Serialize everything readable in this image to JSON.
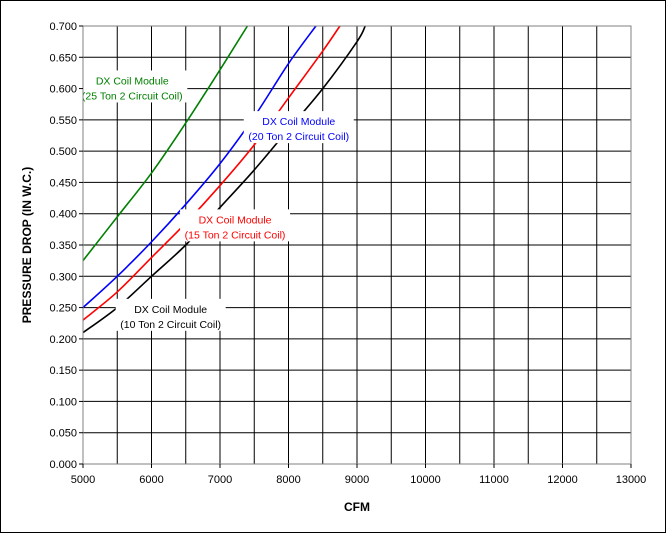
{
  "chart_data": {
    "type": "line",
    "title": "",
    "xlabel": "CFM",
    "ylabel": "PRESSURE DROP (IN W.C.)",
    "xlim": [
      5000,
      13000
    ],
    "ylim": [
      0,
      0.7
    ],
    "xticks": [
      "5000",
      "6000",
      "7000",
      "8000",
      "9000",
      "10000",
      "11000",
      "12000",
      "13000"
    ],
    "yticks": [
      "0.000",
      "0.050",
      "0.100",
      "0.150",
      "0.200",
      "0.250",
      "0.300",
      "0.350",
      "0.400",
      "0.450",
      "0.500",
      "0.550",
      "0.600",
      "0.650",
      "0.700"
    ],
    "grid": true,
    "series": [
      {
        "name": "25 Ton",
        "label1": "DX Coil Module",
        "label2": "(25 Ton 2 Circuit Coil)",
        "color": "#008000",
        "x": [
          5000,
          5500,
          6000,
          6500,
          7000,
          7400
        ],
        "y": [
          0.325,
          0.395,
          0.465,
          0.545,
          0.63,
          0.7
        ],
        "label_at": [
          5720,
          0.605
        ]
      },
      {
        "name": "20 Ton",
        "label1": "DX Coil Module",
        "label2": "(20 Ton 2 Circuit Coil)",
        "color": "#0000ff",
        "x": [
          5000,
          5500,
          6000,
          6500,
          7000,
          7500,
          8000,
          8400
        ],
        "y": [
          0.25,
          0.3,
          0.355,
          0.415,
          0.48,
          0.555,
          0.64,
          0.7
        ],
        "label_at": [
          8150,
          0.54
        ]
      },
      {
        "name": "15 Ton",
        "label1": "DX Coil Module",
        "label2": "(15 Ton 2 Circuit Coil)",
        "color": "#ff0000",
        "x": [
          5000,
          5500,
          6000,
          6500,
          7000,
          7500,
          8000,
          8500,
          8750
        ],
        "y": [
          0.23,
          0.275,
          0.33,
          0.385,
          0.445,
          0.51,
          0.585,
          0.66,
          0.7
        ],
        "label_at": [
          7220,
          0.383
        ]
      },
      {
        "name": "10 Ton",
        "label1": "DX Coil Module",
        "label2": "(10 Ton 2 Circuit Coil)",
        "color": "#000000",
        "x": [
          5000,
          5500,
          6000,
          6500,
          7000,
          7500,
          8000,
          8500,
          9000,
          9120
        ],
        "y": [
          0.21,
          0.25,
          0.3,
          0.35,
          0.41,
          0.47,
          0.535,
          0.6,
          0.675,
          0.7
        ],
        "label_at": [
          6280,
          0.24
        ]
      }
    ]
  }
}
